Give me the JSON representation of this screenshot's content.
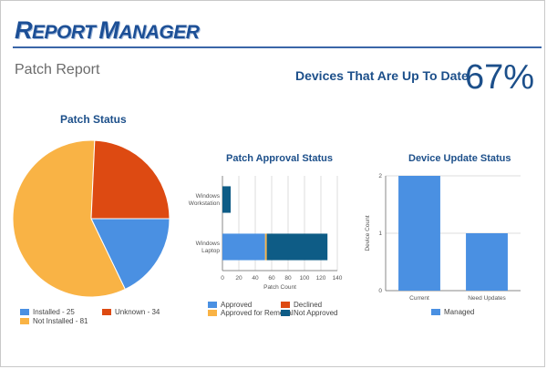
{
  "header": {
    "logo_first_initial": "R",
    "logo_first_rest": "EPORT",
    "logo_second_initial": "M",
    "logo_second_rest": "ANAGER",
    "page_title": "Patch Report",
    "kpi_label": "Devices That Are Up To Date",
    "kpi_value": "67%"
  },
  "colors": {
    "blue": "#4a90e2",
    "orange_red": "#dd4a12",
    "amber": "#f9b345",
    "navy": "#0e5c86"
  },
  "chart_data": [
    {
      "type": "pie",
      "title": "Patch Status",
      "slices": [
        {
          "label": "Installed - 25",
          "value": 25,
          "color": "#4a90e2"
        },
        {
          "label": "Not Installed - 81",
          "value": 81,
          "color": "#f9b345"
        },
        {
          "label": "Unknown - 34",
          "value": 34,
          "color": "#dd4a12"
        }
      ],
      "legend": [
        "Installed - 25",
        "Unknown - 34",
        "Not Installed - 81"
      ]
    },
    {
      "type": "bar",
      "orientation": "horizontal",
      "stacked": true,
      "title": "Patch Approval Status",
      "categories": [
        "Windows Workstation",
        "Windows Laptop"
      ],
      "series": [
        {
          "name": "Approved",
          "values": [
            0,
            52
          ],
          "color": "#4a90e2"
        },
        {
          "name": "Approved for Removal",
          "values": [
            0,
            2
          ],
          "color": "#f9b345"
        },
        {
          "name": "Declined",
          "values": [
            0,
            0
          ],
          "color": "#dd4a12"
        },
        {
          "name": "Not Approved",
          "values": [
            10,
            74
          ],
          "color": "#0e5c86"
        }
      ],
      "xlabel": "Patch Count",
      "xlim": [
        0,
        140
      ],
      "xticks": [
        "0",
        "20",
        "40",
        "60",
        "80",
        "100",
        "120",
        "140"
      ],
      "legend": [
        "Approved",
        "Declined",
        "Approved for Removal",
        "Not Approved"
      ]
    },
    {
      "type": "bar",
      "title": "Device Update Status",
      "categories": [
        "Current",
        "Need Updates"
      ],
      "series": [
        {
          "name": "Managed",
          "values": [
            2,
            1
          ],
          "color": "#4a90e2"
        }
      ],
      "ylabel": "Device Count",
      "ylim": [
        0,
        2
      ],
      "yticks": [
        "0",
        "1",
        "2"
      ],
      "legend": [
        "Managed"
      ]
    }
  ]
}
